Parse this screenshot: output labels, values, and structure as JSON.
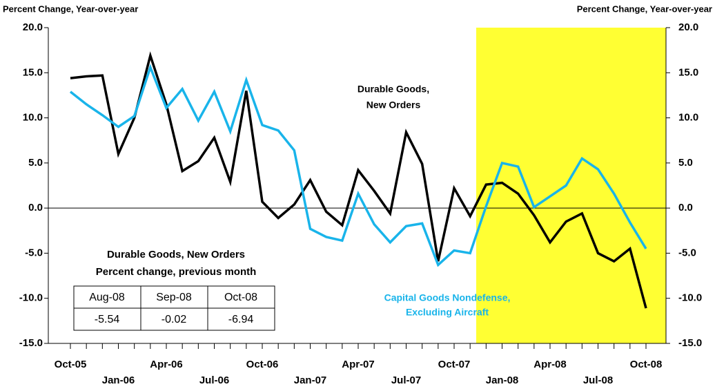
{
  "chart_data": {
    "type": "line",
    "y_label": "Percent Change, Year-over-year",
    "y2_label": "Percent Change, Year-over-year",
    "categories": [
      "Oct-05",
      null,
      null,
      "Jan-06",
      null,
      null,
      "Apr-06",
      null,
      null,
      "Jul-06",
      null,
      null,
      "Oct-06",
      null,
      null,
      "Jan-07",
      null,
      null,
      "Apr-07",
      null,
      null,
      "Jul-07",
      null,
      null,
      "Oct-07",
      null,
      null,
      "Jan-08",
      null,
      null,
      "Apr-08",
      null,
      null,
      "Jul-08",
      null,
      null,
      "Oct-08"
    ],
    "series": [
      {
        "color": "#000000",
        "values": [
          14.4,
          14.6,
          14.7,
          6.0,
          10.0,
          16.9,
          11.5,
          4.1,
          5.2,
          7.8,
          2.9,
          13.0,
          0.7,
          -1.1,
          0.4,
          3.1,
          -0.4,
          -1.9,
          4.2,
          1.9,
          -0.6,
          8.4,
          4.9,
          -5.9,
          2.2,
          -0.9,
          2.6,
          2.8,
          1.6,
          -0.8,
          -3.8,
          -1.5,
          -0.6,
          -5.0,
          -5.9,
          -4.5,
          -11.1
        ]
      },
      {
        "color": "#19b4ea",
        "values": [
          12.9,
          11.5,
          10.3,
          9.0,
          10.2,
          15.6,
          11.1,
          13.2,
          9.7,
          12.9,
          8.5,
          14.2,
          9.2,
          8.6,
          6.4,
          -2.3,
          -3.2,
          -3.6,
          1.6,
          -1.8,
          -3.8,
          -2.0,
          -1.7,
          -6.3,
          -4.7,
          -5.0,
          0.2,
          5.0,
          4.6,
          0.1,
          1.3,
          2.5,
          5.5,
          4.3,
          1.6,
          -1.6,
          -4.5
        ]
      }
    ],
    "ylim": [
      -15,
      20
    ],
    "yticks": [
      {
        "value": -15,
        "label": "-15.0"
      },
      {
        "value": -10,
        "label": "-10.0"
      },
      {
        "value": -5,
        "label": "-5.0"
      },
      {
        "value": 0,
        "label": "0.0"
      },
      {
        "value": 5,
        "label": "5.0"
      },
      {
        "value": 10,
        "label": "10.0"
      },
      {
        "value": 15,
        "label": "15.0"
      },
      {
        "value": 20,
        "label": "20.0"
      }
    ],
    "y2lim": [
      -15,
      20
    ],
    "y2ticks": [
      {
        "value": -15,
        "label": "-15.0"
      },
      {
        "value": -10,
        "label": "-10.0"
      },
      {
        "value": -5,
        "label": "-5.0"
      },
      {
        "value": 0,
        "label": "0.0"
      },
      {
        "value": 5,
        "label": "5.0"
      },
      {
        "value": 10,
        "label": "10.0"
      },
      {
        "value": 15,
        "label": "15.0"
      },
      {
        "value": 20,
        "label": "20.0"
      }
    ],
    "annotations": [
      {
        "lines": [
          "Durable Goods,",
          "New Orders"
        ],
        "color": "#000000"
      },
      {
        "lines": [
          "Capital Goods Nondefense,",
          "Excluding  Aircraft"
        ],
        "color": "#19b4ea"
      }
    ]
  },
  "table": {
    "title": [
      "Durable Goods, New Orders",
      "Percent change, previous month"
    ],
    "header": [
      "Aug-08",
      "Sep-08",
      "Oct-08"
    ],
    "row": [
      "-5.54",
      "-0.02",
      "-6.94"
    ]
  }
}
